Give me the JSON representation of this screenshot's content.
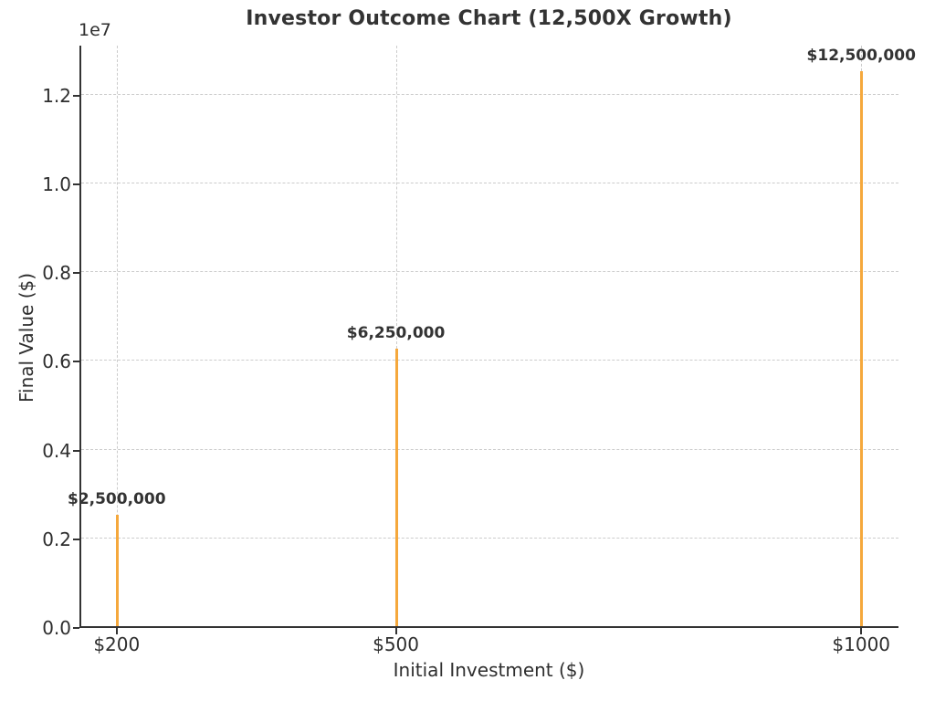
{
  "chart_data": {
    "type": "bar",
    "title": "Investor Outcome Chart (12,500X Growth)",
    "xlabel": "Initial Investment ($)",
    "ylabel": "Final Value ($)",
    "categories": [
      "$200",
      "$500",
      "$1000"
    ],
    "x_values": [
      200,
      500,
      1000
    ],
    "values": [
      2500000,
      6250000,
      12500000
    ],
    "bar_labels": [
      "$2,500,000",
      "$6,250,000",
      "$12,500,000"
    ],
    "y_ticks": [
      0,
      2000000,
      4000000,
      6000000,
      8000000,
      10000000,
      12000000
    ],
    "y_tick_labels": [
      "0.0",
      "0.2",
      "0.4",
      "0.6",
      "0.8",
      "1.0",
      "1.2"
    ],
    "y_offset_text": "1e7",
    "ylim": [
      0,
      13125000
    ],
    "xlim": [
      160,
      1040
    ],
    "grid": true,
    "grid_style": "dashed",
    "legend": false,
    "bar_color": "#F5A83C",
    "grid_color": "#cccccc",
    "axis_color": "#333333",
    "text_color": "#2e2e2e"
  }
}
